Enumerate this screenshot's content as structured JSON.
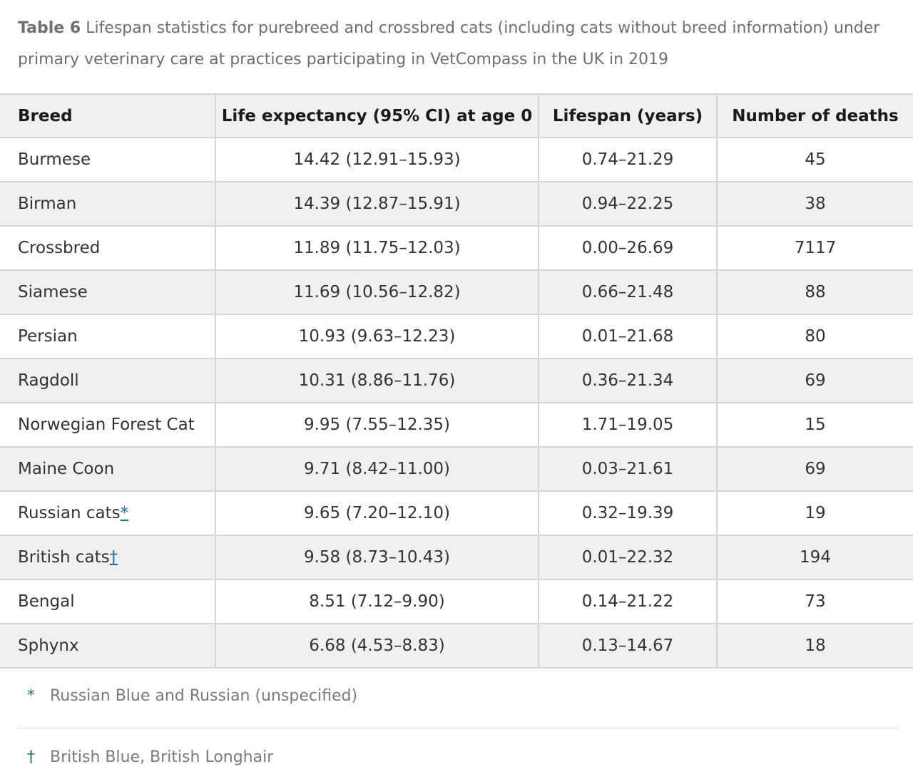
{
  "caption": {
    "label": "Table 6",
    "text": " Lifespan statistics for purebreed and crossbred cats (including cats without breed information) under primary veterinary care at practices participating in VetCompass in the UK in 2019"
  },
  "table": {
    "headers": [
      "Breed",
      "Life expectancy (95% CI) at age 0",
      "Lifespan (years)",
      "Number of deaths"
    ],
    "rows": [
      {
        "breed": "Burmese",
        "footnote": "",
        "life_expectancy": "14.42 (12.91–15.93)",
        "lifespan": "0.74–21.29",
        "deaths": "45"
      },
      {
        "breed": "Birman",
        "footnote": "",
        "life_expectancy": "14.39 (12.87–15.91)",
        "lifespan": "0.94–22.25",
        "deaths": "38"
      },
      {
        "breed": "Crossbred",
        "footnote": "",
        "life_expectancy": "11.89 (11.75–12.03)",
        "lifespan": "0.00–26.69",
        "deaths": "7117"
      },
      {
        "breed": "Siamese",
        "footnote": "",
        "life_expectancy": "11.69 (10.56–12.82)",
        "lifespan": "0.66–21.48",
        "deaths": "88"
      },
      {
        "breed": "Persian",
        "footnote": "",
        "life_expectancy": "10.93 (9.63–12.23)",
        "lifespan": "0.01–21.68",
        "deaths": "80"
      },
      {
        "breed": "Ragdoll",
        "footnote": "",
        "life_expectancy": "10.31 (8.86–11.76)",
        "lifespan": "0.36–21.34",
        "deaths": "69"
      },
      {
        "breed": "Norwegian Forest Cat",
        "footnote": "",
        "life_expectancy": "9.95 (7.55–12.35)",
        "lifespan": "1.71–19.05",
        "deaths": "15"
      },
      {
        "breed": "Maine Coon",
        "footnote": "",
        "life_expectancy": "9.71 (8.42–11.00)",
        "lifespan": "0.03–21.61",
        "deaths": "69"
      },
      {
        "breed": "Russian cats",
        "footnote": "*",
        "life_expectancy": "9.65 (7.20–12.10)",
        "lifespan": "0.32–19.39",
        "deaths": "19"
      },
      {
        "breed": "British cats",
        "footnote": "†",
        "life_expectancy": "9.58 (8.73–10.43)",
        "lifespan": "0.01–22.32",
        "deaths": "194"
      },
      {
        "breed": "Bengal",
        "footnote": "",
        "life_expectancy": "8.51 (7.12–9.90)",
        "lifespan": "0.14–21.22",
        "deaths": "73"
      },
      {
        "breed": "Sphynx",
        "footnote": "",
        "life_expectancy": "6.68 (4.53–8.83)",
        "lifespan": "0.13–14.67",
        "deaths": "18"
      }
    ]
  },
  "footnotes": [
    {
      "symbol": "*",
      "text": "Russian Blue and Russian (unspecified)"
    },
    {
      "symbol": "†",
      "text": "British Blue, British Longhair"
    }
  ],
  "colors": {
    "header_bg": "#f0f0f0",
    "stripe_bg": "#f0f0f0",
    "border": "#d6d6d6",
    "link": "#1a6fb0",
    "footnote_symbol": "#1d6e82"
  }
}
